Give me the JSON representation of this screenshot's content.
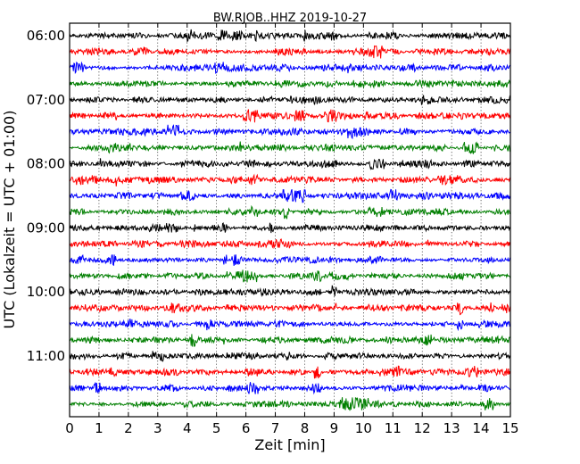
{
  "chart_data": {
    "type": "line",
    "title": "BW.RJOB..HHZ 2019-10-27",
    "xlabel": "Zeit  [min]",
    "ylabel": "UTC (Lokalzeit = UTC + 01:00)",
    "xlim": [
      0,
      15
    ],
    "x_ticks": [
      "0",
      "1",
      "2",
      "3",
      "4",
      "5",
      "6",
      "7",
      "8",
      "9",
      "10",
      "11",
      "12",
      "13",
      "14",
      "15"
    ],
    "y_ticks": [
      "06:00",
      "07:00",
      "08:00",
      "09:00",
      "10:00",
      "11:00"
    ],
    "grid": "vertical dotted at each minute",
    "trace_colors": [
      "#000000",
      "#ff0000",
      "#0000ff",
      "#007f00"
    ],
    "trace_count": 24,
    "trace_start_times": [
      "06:00",
      "06:15",
      "06:30",
      "06:45",
      "07:00",
      "07:15",
      "07:30",
      "07:45",
      "08:00",
      "08:15",
      "08:30",
      "08:45",
      "09:00",
      "09:15",
      "09:30",
      "09:45",
      "10:00",
      "10:15",
      "10:30",
      "10:45",
      "11:00",
      "11:15",
      "11:30",
      "11:45"
    ]
  }
}
